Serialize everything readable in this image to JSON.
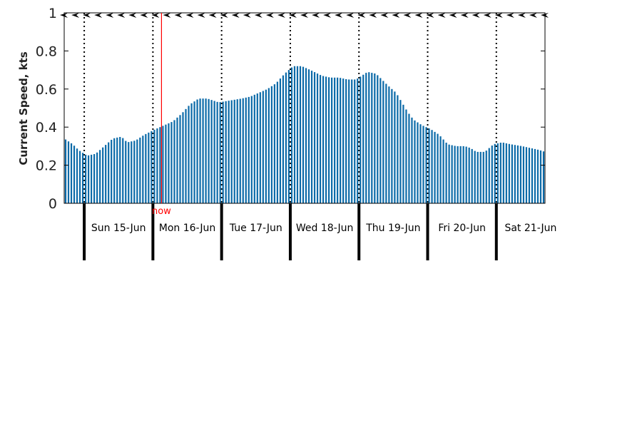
{
  "chart_data": {
    "type": "bar",
    "ylabel": "Current Speed, kts",
    "ylim": [
      0,
      1
    ],
    "yticks": [
      "0",
      "0.2",
      "0.4",
      "0.6",
      "0.8",
      "1"
    ],
    "now_label": "now",
    "now_hour": 34,
    "day_labels": [
      "Sun 15-Jun",
      "Mon 16-Jun",
      "Tue 17-Jun",
      "Wed 18-Jun",
      "Thu 19-Jun",
      "Fri 20-Jun",
      "Sat 21-Jun"
    ],
    "days_start_hour": 7,
    "hours_per_bar": 1,
    "x_range_hours": [
      0,
      168
    ],
    "keypoints": [
      [
        0,
        0.34
      ],
      [
        3,
        0.31
      ],
      [
        5,
        0.28
      ],
      [
        8,
        0.25
      ],
      [
        11,
        0.26
      ],
      [
        14,
        0.3
      ],
      [
        17,
        0.34
      ],
      [
        20,
        0.35
      ],
      [
        22,
        0.32
      ],
      [
        25,
        0.33
      ],
      [
        28,
        0.36
      ],
      [
        32,
        0.39
      ],
      [
        35,
        0.41
      ],
      [
        38,
        0.43
      ],
      [
        41,
        0.47
      ],
      [
        44,
        0.52
      ],
      [
        47,
        0.55
      ],
      [
        50,
        0.55
      ],
      [
        54,
        0.53
      ],
      [
        58,
        0.54
      ],
      [
        62,
        0.55
      ],
      [
        65,
        0.56
      ],
      [
        68,
        0.58
      ],
      [
        71,
        0.6
      ],
      [
        74,
        0.63
      ],
      [
        77,
        0.68
      ],
      [
        80,
        0.72
      ],
      [
        83,
        0.72
      ],
      [
        86,
        0.7
      ],
      [
        90,
        0.67
      ],
      [
        93,
        0.66
      ],
      [
        96,
        0.66
      ],
      [
        99,
        0.65
      ],
      [
        102,
        0.65
      ],
      [
        104,
        0.67
      ],
      [
        106,
        0.69
      ],
      [
        109,
        0.68
      ],
      [
        111,
        0.65
      ],
      [
        113,
        0.62
      ],
      [
        116,
        0.58
      ],
      [
        118,
        0.53
      ],
      [
        120,
        0.48
      ],
      [
        122,
        0.44
      ],
      [
        125,
        0.41
      ],
      [
        128,
        0.39
      ],
      [
        131,
        0.36
      ],
      [
        134,
        0.31
      ],
      [
        137,
        0.3
      ],
      [
        140,
        0.3
      ],
      [
        142,
        0.29
      ],
      [
        144,
        0.27
      ],
      [
        147,
        0.27
      ],
      [
        150,
        0.31
      ],
      [
        153,
        0.32
      ],
      [
        156,
        0.31
      ],
      [
        160,
        0.3
      ],
      [
        163,
        0.29
      ],
      [
        166,
        0.28
      ],
      [
        168,
        0.27
      ]
    ],
    "colors": {
      "bar": "#0b6aa8",
      "now_line": "#ff0000",
      "axis": "#000000"
    }
  }
}
